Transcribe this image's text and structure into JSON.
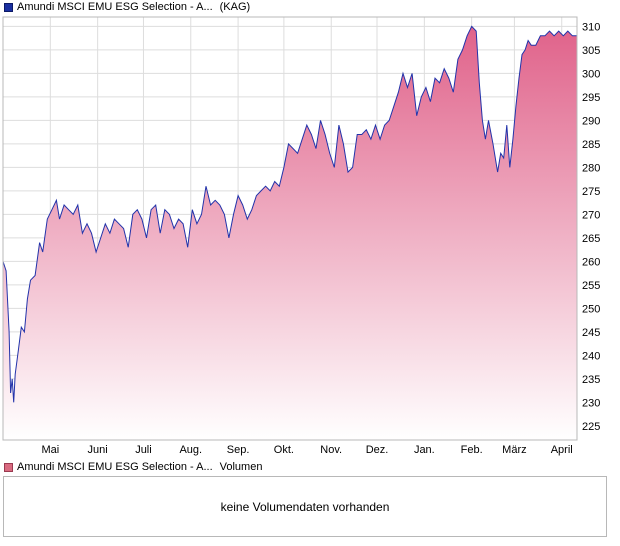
{
  "legend": {
    "price_name": "Amundi MSCI EMU ESG Selection - A...",
    "price_suffix": "(KAG)",
    "volume_name": "Amundi MSCI EMU ESG Selection - A...",
    "volume_suffix": "Volumen"
  },
  "volume": {
    "message": "keine Volumendaten vorhanden"
  },
  "colors": {
    "line": "#2233aa",
    "fill_top": "#e0628a",
    "fill_bottom": "#ffffff",
    "grid": "#dddddd",
    "frame": "#b8b8b8"
  },
  "chart_data": {
    "type": "area",
    "title": "",
    "xlabel": "",
    "ylabel": "",
    "ylim": [
      222,
      312
    ],
    "y_axis_position": "right",
    "grid": true,
    "y_ticks": [
      225,
      230,
      235,
      240,
      245,
      250,
      255,
      260,
      265,
      270,
      275,
      280,
      285,
      290,
      295,
      300,
      305,
      310
    ],
    "x_ticks": [
      {
        "label": "Mai",
        "day": 12
      },
      {
        "label": "Juni",
        "day": 43
      },
      {
        "label": "Juli",
        "day": 73
      },
      {
        "label": "Aug.",
        "day": 104
      },
      {
        "label": "Sep.",
        "day": 135
      },
      {
        "label": "Okt.",
        "day": 165
      },
      {
        "label": "Nov.",
        "day": 196
      },
      {
        "label": "Dez.",
        "day": 226
      },
      {
        "label": "Jan.",
        "day": 257
      },
      {
        "label": "Feb.",
        "day": 288
      },
      {
        "label": "März",
        "day": 316
      },
      {
        "label": "April",
        "day": 347
      }
    ],
    "xlim": [
      -19,
      357
    ],
    "series": [
      {
        "points": [
          [
            -19,
            260
          ],
          [
            -17,
            258
          ],
          [
            -15,
            245
          ],
          [
            -14,
            232
          ],
          [
            -13,
            235
          ],
          [
            -12,
            230
          ],
          [
            -11,
            236
          ],
          [
            -9,
            241
          ],
          [
            -7,
            246
          ],
          [
            -5,
            245
          ],
          [
            -3,
            252
          ],
          [
            -1,
            256
          ],
          [
            2,
            257
          ],
          [
            5,
            264
          ],
          [
            7,
            262
          ],
          [
            10,
            269
          ],
          [
            13,
            271
          ],
          [
            16,
            273
          ],
          [
            18,
            269
          ],
          [
            21,
            272
          ],
          [
            24,
            271
          ],
          [
            27,
            270
          ],
          [
            30,
            272
          ],
          [
            33,
            266
          ],
          [
            36,
            268
          ],
          [
            39,
            266
          ],
          [
            42,
            262
          ],
          [
            45,
            265
          ],
          [
            48,
            268
          ],
          [
            51,
            266
          ],
          [
            54,
            269
          ],
          [
            57,
            268
          ],
          [
            60,
            267
          ],
          [
            63,
            263
          ],
          [
            66,
            270
          ],
          [
            69,
            271
          ],
          [
            72,
            269
          ],
          [
            75,
            265
          ],
          [
            78,
            271
          ],
          [
            81,
            272
          ],
          [
            84,
            266
          ],
          [
            87,
            271
          ],
          [
            90,
            270
          ],
          [
            93,
            267
          ],
          [
            96,
            269
          ],
          [
            99,
            268
          ],
          [
            102,
            263
          ],
          [
            105,
            271
          ],
          [
            108,
            268
          ],
          [
            111,
            270
          ],
          [
            114,
            276
          ],
          [
            117,
            272
          ],
          [
            120,
            273
          ],
          [
            123,
            272
          ],
          [
            126,
            270
          ],
          [
            129,
            265
          ],
          [
            132,
            270
          ],
          [
            135,
            274
          ],
          [
            138,
            272
          ],
          [
            141,
            269
          ],
          [
            144,
            271
          ],
          [
            147,
            274
          ],
          [
            150,
            275
          ],
          [
            153,
            276
          ],
          [
            156,
            275
          ],
          [
            159,
            277
          ],
          [
            162,
            276
          ],
          [
            165,
            280
          ],
          [
            168,
            285
          ],
          [
            171,
            284
          ],
          [
            174,
            283
          ],
          [
            177,
            286
          ],
          [
            180,
            289
          ],
          [
            183,
            287
          ],
          [
            186,
            284
          ],
          [
            189,
            290
          ],
          [
            192,
            287
          ],
          [
            195,
            283
          ],
          [
            198,
            280
          ],
          [
            201,
            289
          ],
          [
            204,
            285
          ],
          [
            207,
            279
          ],
          [
            210,
            280
          ],
          [
            213,
            287
          ],
          [
            216,
            287
          ],
          [
            219,
            288
          ],
          [
            222,
            286
          ],
          [
            225,
            289
          ],
          [
            228,
            286
          ],
          [
            231,
            289
          ],
          [
            234,
            290
          ],
          [
            237,
            293
          ],
          [
            240,
            296
          ],
          [
            243,
            300
          ],
          [
            246,
            297
          ],
          [
            249,
            300
          ],
          [
            252,
            291
          ],
          [
            255,
            295
          ],
          [
            258,
            297
          ],
          [
            261,
            294
          ],
          [
            264,
            299
          ],
          [
            267,
            298
          ],
          [
            270,
            301
          ],
          [
            273,
            299
          ],
          [
            276,
            296
          ],
          [
            279,
            303
          ],
          [
            282,
            305
          ],
          [
            285,
            308
          ],
          [
            288,
            310
          ],
          [
            291,
            309
          ],
          [
            293,
            298
          ],
          [
            295,
            290
          ],
          [
            297,
            286
          ],
          [
            299,
            290
          ],
          [
            302,
            285
          ],
          [
            305,
            279
          ],
          [
            307,
            283
          ],
          [
            309,
            282
          ],
          [
            311,
            289
          ],
          [
            313,
            280
          ],
          [
            315,
            286
          ],
          [
            317,
            293
          ],
          [
            319,
            299
          ],
          [
            321,
            304
          ],
          [
            323,
            305
          ],
          [
            325,
            307
          ],
          [
            327,
            306
          ],
          [
            330,
            306
          ],
          [
            333,
            308
          ],
          [
            336,
            308
          ],
          [
            339,
            309
          ],
          [
            342,
            308
          ],
          [
            345,
            309
          ],
          [
            348,
            308
          ],
          [
            351,
            309
          ],
          [
            354,
            308
          ],
          [
            357,
            308
          ]
        ]
      }
    ]
  }
}
